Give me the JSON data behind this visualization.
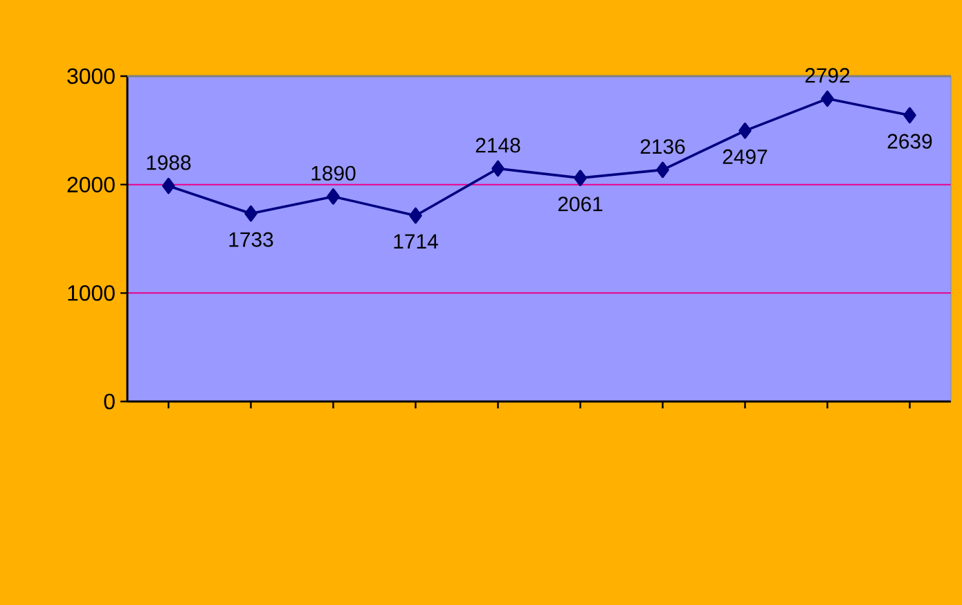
{
  "chart_data": {
    "type": "line",
    "categories": [
      null,
      null,
      null,
      null,
      null,
      null,
      null,
      null,
      null,
      null
    ],
    "series": [
      {
        "color": "#000080",
        "values": [
          1988,
          1733,
          1890,
          1714,
          2148,
          2061,
          2136,
          2497,
          2792,
          2639
        ]
      }
    ],
    "ylim": [
      0,
      3000
    ],
    "yticks": [
      0,
      1000,
      2000,
      3000
    ],
    "grid": "y",
    "marker": "diamond",
    "line_style": "solid",
    "data_labels": true
  }
}
